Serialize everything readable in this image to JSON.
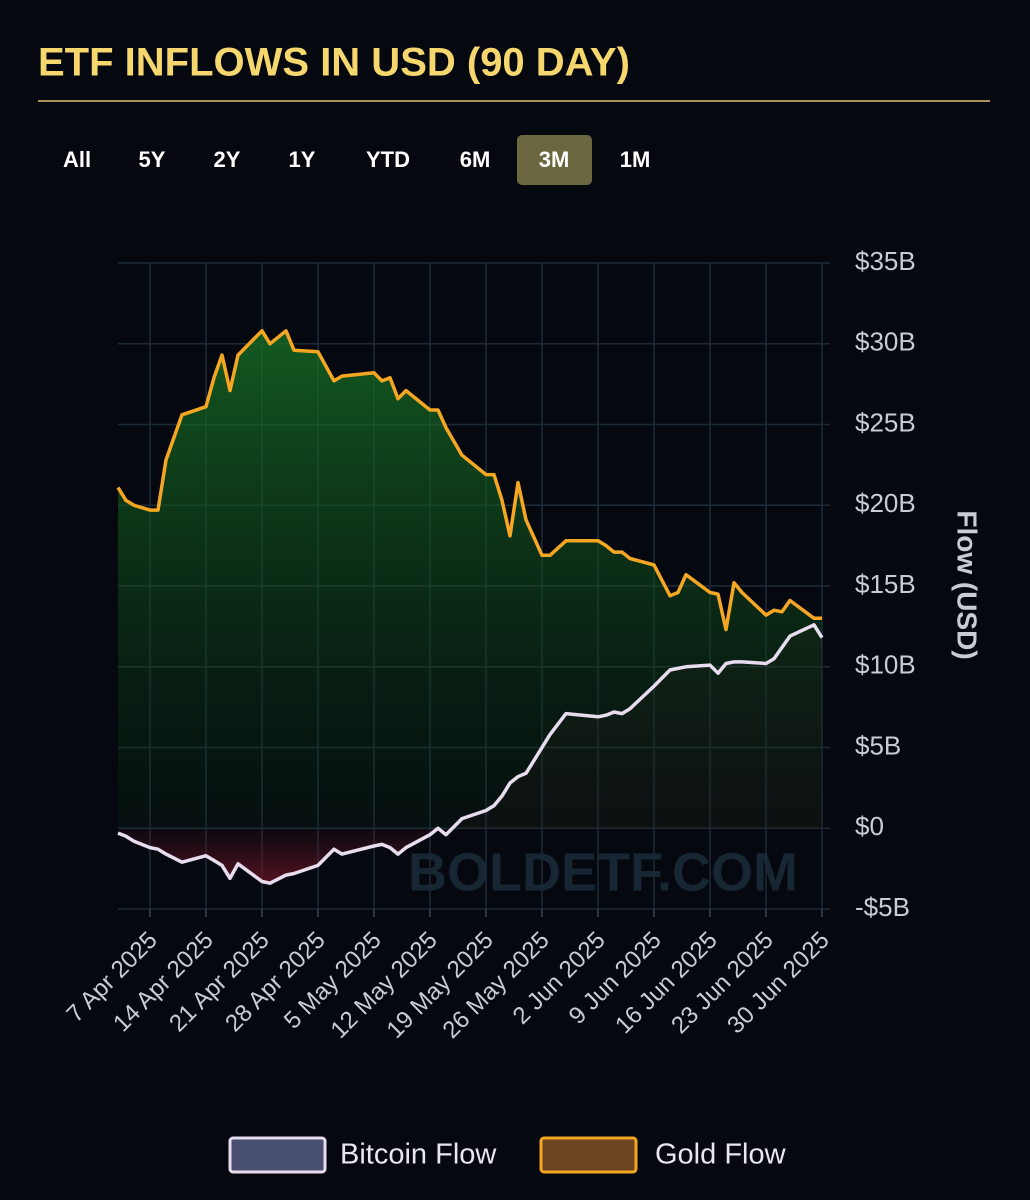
{
  "range_buttons": [
    "All",
    "5Y",
    "2Y",
    "1Y",
    "YTD",
    "6M",
    "3M",
    "1M"
  ],
  "active_button": 6,
  "watermark": "BOLDETF.COM",
  "chart_data": {
    "type": "line",
    "title": "ETF INFLOWS IN USD (90 DAY)",
    "y_label": "Flow (USD)",
    "x": [
      "2025-04-03",
      "2025-04-04",
      "2025-04-05",
      "2025-04-07",
      "2025-04-08",
      "2025-04-09",
      "2025-04-11",
      "2025-04-14",
      "2025-04-15",
      "2025-04-16",
      "2025-04-17",
      "2025-04-18",
      "2025-04-21",
      "2025-04-22",
      "2025-04-24",
      "2025-04-25",
      "2025-04-28",
      "2025-04-30",
      "2025-05-01",
      "2025-05-05",
      "2025-05-06",
      "2025-05-07",
      "2025-05-08",
      "2025-05-09",
      "2025-05-12",
      "2025-05-13",
      "2025-05-14",
      "2025-05-16",
      "2025-05-19",
      "2025-05-20",
      "2025-05-21",
      "2025-05-22",
      "2025-05-23",
      "2025-05-24",
      "2025-05-26",
      "2025-05-27",
      "2025-05-29",
      "2025-06-02",
      "2025-06-03",
      "2025-06-04",
      "2025-06-05",
      "2025-06-06",
      "2025-06-09",
      "2025-06-11",
      "2025-06-12",
      "2025-06-13",
      "2025-06-16",
      "2025-06-17",
      "2025-06-18",
      "2025-06-19",
      "2025-06-20",
      "2025-06-23",
      "2025-06-24",
      "2025-06-25",
      "2025-06-26",
      "2025-06-29",
      "2025-06-30"
    ],
    "series": [
      {
        "name": "Bitcoin Flow",
        "color": "#e8dcef",
        "legend_fill": "#4a5070",
        "values": [
          -0.3,
          -0.5,
          -0.8,
          -1.2,
          -1.3,
          -1.6,
          -2.1,
          -1.7,
          -2.0,
          -2.3,
          -3.1,
          -2.2,
          -3.3,
          -3.4,
          -2.9,
          -2.8,
          -2.3,
          -1.3,
          -1.6,
          -1.1,
          -1.0,
          -1.2,
          -1.6,
          -1.2,
          -0.4,
          0.0,
          -0.4,
          0.6,
          1.1,
          1.4,
          2.0,
          2.8,
          3.2,
          3.4,
          5.0,
          5.8,
          7.1,
          6.9,
          7.0,
          7.2,
          7.1,
          7.4,
          8.8,
          9.8,
          9.9,
          10.0,
          10.1,
          9.6,
          10.2,
          10.3,
          10.3,
          10.2,
          10.5,
          11.2,
          11.9,
          12.6,
          11.8
        ]
      },
      {
        "name": "Gold Flow",
        "color": "#f5a623",
        "legend_fill": "#6b4420",
        "values": [
          21.1,
          20.3,
          20.0,
          19.7,
          19.7,
          22.8,
          25.6,
          26.1,
          27.9,
          29.3,
          27.1,
          29.3,
          30.8,
          30.0,
          30.8,
          29.6,
          29.5,
          27.7,
          28.0,
          28.2,
          27.7,
          27.9,
          26.6,
          27.1,
          25.9,
          25.9,
          24.8,
          23.1,
          21.9,
          21.9,
          20.3,
          18.1,
          21.4,
          19.1,
          16.9,
          16.9,
          17.8,
          17.8,
          17.5,
          17.1,
          17.1,
          16.7,
          16.3,
          14.4,
          14.6,
          15.7,
          14.6,
          14.5,
          12.3,
          15.2,
          14.6,
          13.2,
          13.5,
          13.4,
          14.1,
          13.0,
          13.0
        ]
      }
    ],
    "xlim": [
      "2025-04-03",
      "2025-07-01"
    ],
    "xticks": [
      {
        "value": "2025-04-07",
        "label": "7 Apr 2025"
      },
      {
        "value": "2025-04-14",
        "label": "14 Apr 2025"
      },
      {
        "value": "2025-04-21",
        "label": "21 Apr 2025"
      },
      {
        "value": "2025-04-28",
        "label": "28 Apr 2025"
      },
      {
        "value": "2025-05-05",
        "label": "5 May 2025"
      },
      {
        "value": "2025-05-12",
        "label": "12 May 2025"
      },
      {
        "value": "2025-05-19",
        "label": "19 May 2025"
      },
      {
        "value": "2025-05-26",
        "label": "26 May 2025"
      },
      {
        "value": "2025-06-02",
        "label": "2 Jun 2025"
      },
      {
        "value": "2025-06-09",
        "label": "9 Jun 2025"
      },
      {
        "value": "2025-06-16",
        "label": "16 Jun 2025"
      },
      {
        "value": "2025-06-23",
        "label": "23 Jun 2025"
      },
      {
        "value": "2025-06-30",
        "label": "30 Jun 2025"
      }
    ],
    "ylim": [
      -5,
      35
    ],
    "yticks": [
      {
        "value": -5,
        "label": "-$5B"
      },
      {
        "value": 0,
        "label": "$0"
      },
      {
        "value": 5,
        "label": "$5B"
      },
      {
        "value": 10,
        "label": "$10B"
      },
      {
        "value": 15,
        "label": "$15B"
      },
      {
        "value": 20,
        "label": "$20B"
      },
      {
        "value": 25,
        "label": "$25B"
      },
      {
        "value": 30,
        "label": "$30B"
      },
      {
        "value": 35,
        "label": "$35B"
      }
    ],
    "grid": true,
    "legend": "bottom"
  }
}
